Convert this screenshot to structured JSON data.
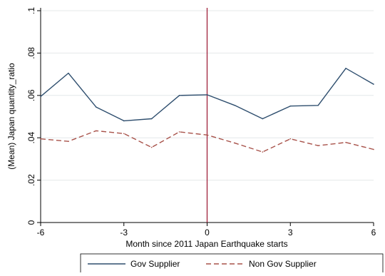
{
  "chart_data": {
    "type": "line",
    "xlabel": "Month since 2011 Japan Earthquake starts",
    "ylabel": "(Mean) Japan quantity_ratio",
    "xlim": [
      -6,
      6
    ],
    "ylim": [
      0,
      0.1
    ],
    "xticks": [
      -6,
      -3,
      0,
      3,
      6
    ],
    "xtick_labels": [
      "-6",
      "-3",
      "0",
      "3",
      "6"
    ],
    "yticks": [
      0,
      0.02,
      0.04,
      0.06,
      0.08,
      0.1
    ],
    "ytick_labels": [
      "0",
      ".02",
      ".04",
      ".06",
      ".08",
      ".1"
    ],
    "grid": "horizontal",
    "reference_line": {
      "x": 0,
      "color": "#a0203a"
    },
    "legend_position": "bottom",
    "x": [
      -6,
      -5,
      -4,
      -3,
      -2,
      -1,
      0,
      1,
      2,
      3,
      4,
      5,
      6
    ],
    "series": [
      {
        "name": "Gov Supplier",
        "color": "#2e4e6e",
        "dash": "solid",
        "values": [
          0.0595,
          0.0705,
          0.0545,
          0.048,
          0.049,
          0.06,
          0.0603,
          0.0553,
          0.049,
          0.055,
          0.0553,
          0.0728,
          0.0653
        ]
      },
      {
        "name": "Non Gov Supplier",
        "color": "#a8524a",
        "dash": "dashed",
        "values": [
          0.0395,
          0.0383,
          0.0433,
          0.042,
          0.0355,
          0.0428,
          0.0413,
          0.0375,
          0.0333,
          0.0395,
          0.0363,
          0.0378,
          0.0345
        ]
      }
    ]
  }
}
